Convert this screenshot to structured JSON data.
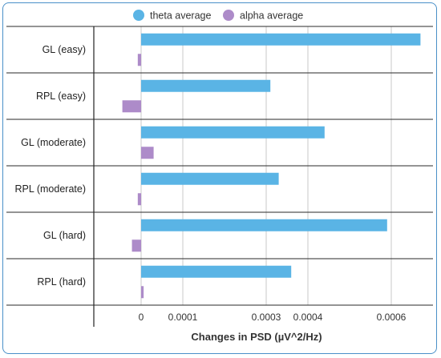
{
  "chart_data": {
    "type": "bar",
    "orientation": "horizontal",
    "categories": [
      "GL (easy)",
      "RPL (easy)",
      "GL (moderate)",
      "RPL (moderate)",
      "GL (hard)",
      "RPL (hard)"
    ],
    "series": [
      {
        "name": "theta average",
        "color": "#5ab4e5",
        "values": [
          0.00067,
          0.00031,
          0.00044,
          0.00033,
          0.00059,
          0.00036
        ]
      },
      {
        "name": "alpha average",
        "color": "#ad8bc9",
        "values": [
          -8e-06,
          -4.5e-05,
          3e-05,
          -8e-06,
          -2.2e-05,
          6e-06
        ]
      }
    ],
    "xlabel": "Changes in PSD (µV^2/Hz)",
    "ylabel": "",
    "xlim": [
      -0.00011,
      0.00069
    ],
    "xticks": [
      0,
      0.0001,
      0.0003,
      0.0004,
      0.0006
    ],
    "xtick_labels": [
      "0",
      "0.0001",
      "0.0003",
      "0.0004",
      "0.0006"
    ],
    "grid": true,
    "legend_position": "top"
  }
}
